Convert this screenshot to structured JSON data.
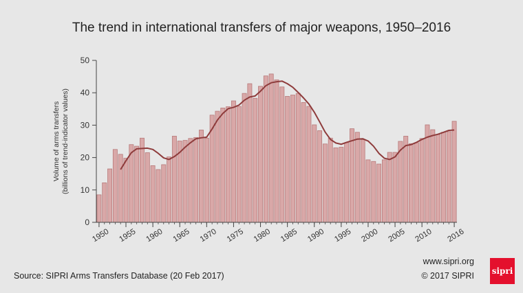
{
  "chart_data": {
    "type": "bar",
    "title": "The trend in international transfers of major weapons, 1950–2016",
    "ylabel_line1": "Volume of arms transfers",
    "ylabel_line2": "(billions of trend-indicator values)",
    "xlabel": "",
    "ylim": [
      0,
      50
    ],
    "yticks": [
      0,
      10,
      20,
      30,
      40,
      50
    ],
    "xticks": [
      1950,
      1955,
      1960,
      1965,
      1970,
      1975,
      1980,
      1985,
      1990,
      1995,
      2000,
      2005,
      2010,
      2016
    ],
    "grid": false,
    "legend": "none",
    "colors": {
      "bar_fill": "#d9a8a8",
      "bar_stroke": "#b77a7a",
      "trend_line": "#8e3b3b",
      "axis": "#444444",
      "logo": "#e4102d"
    },
    "series": [
      {
        "type": "bar",
        "x": [
          1950,
          1951,
          1952,
          1953,
          1954,
          1955,
          1956,
          1957,
          1958,
          1959,
          1960,
          1961,
          1962,
          1963,
          1964,
          1965,
          1966,
          1967,
          1968,
          1969,
          1970,
          1971,
          1972,
          1973,
          1974,
          1975,
          1976,
          1977,
          1978,
          1979,
          1980,
          1981,
          1982,
          1983,
          1984,
          1985,
          1986,
          1987,
          1988,
          1989,
          1990,
          1991,
          1992,
          1993,
          1994,
          1995,
          1996,
          1997,
          1998,
          1999,
          2000,
          2001,
          2002,
          2003,
          2004,
          2005,
          2006,
          2007,
          2008,
          2009,
          2010,
          2011,
          2012,
          2013,
          2014,
          2015,
          2016
        ],
        "values": [
          8.5,
          12.2,
          16.5,
          22.5,
          21.0,
          19.8,
          24.0,
          23.5,
          26.0,
          21.5,
          17.5,
          16.3,
          17.8,
          20.2,
          26.6,
          25.1,
          25.3,
          25.9,
          26.2,
          28.5,
          26.0,
          33.1,
          34.3,
          35.3,
          35.7,
          37.5,
          35.8,
          39.8,
          42.8,
          38.3,
          42.0,
          45.2,
          45.8,
          44.0,
          41.8,
          38.9,
          39.3,
          39.8,
          37.0,
          35.8,
          30.1,
          28.3,
          24.2,
          26.0,
          23.0,
          23.2,
          24.6,
          28.9,
          27.8,
          25.5,
          19.3,
          18.8,
          18.0,
          19.3,
          21.6,
          21.6,
          25.0,
          26.6,
          24.3,
          24.6,
          25.9,
          30.1,
          28.6,
          27.1,
          27.8,
          28.0,
          31.2
        ]
      },
      {
        "type": "line",
        "name": "",
        "x": [
          1954,
          1955,
          1956,
          1957,
          1958,
          1959,
          1960,
          1961,
          1962,
          1963,
          1964,
          1965,
          1966,
          1967,
          1968,
          1969,
          1970,
          1971,
          1972,
          1973,
          1974,
          1975,
          1976,
          1977,
          1978,
          1979,
          1980,
          1981,
          1982,
          1983,
          1984,
          1985,
          1986,
          1987,
          1988,
          1989,
          1990,
          1991,
          1992,
          1993,
          1994,
          1995,
          1996,
          1997,
          1998,
          1999,
          2000,
          2001,
          2002,
          2003,
          2004,
          2005,
          2006,
          2007,
          2008,
          2009,
          2010,
          2011,
          2012,
          2013,
          2014,
          2015,
          2016
        ],
        "values": [
          16.3,
          19.0,
          21.5,
          22.7,
          22.8,
          22.9,
          22.5,
          21.3,
          19.9,
          19.4,
          20.3,
          21.6,
          23.2,
          24.6,
          25.8,
          26.1,
          26.3,
          28.8,
          31.6,
          33.6,
          35.1,
          35.5,
          36.2,
          37.7,
          38.7,
          39.0,
          40.5,
          42.2,
          43.1,
          43.4,
          43.6,
          42.8,
          41.7,
          40.1,
          38.4,
          36.5,
          34.0,
          31.0,
          27.9,
          25.6,
          24.5,
          24.1,
          24.7,
          25.2,
          25.7,
          25.8,
          25.1,
          23.5,
          21.3,
          19.8,
          19.4,
          20.2,
          22.3,
          23.7,
          24.0,
          24.7,
          25.6,
          26.3,
          26.8,
          27.2,
          27.8,
          28.4,
          28.5
        ]
      }
    ]
  },
  "footer": {
    "source": "Source: SIPRI Arms Transfers Database (20 Feb 2017)",
    "website": "www.sipri.org",
    "copyright": "© 2017 SIPRI",
    "logo_text": "sipri"
  }
}
